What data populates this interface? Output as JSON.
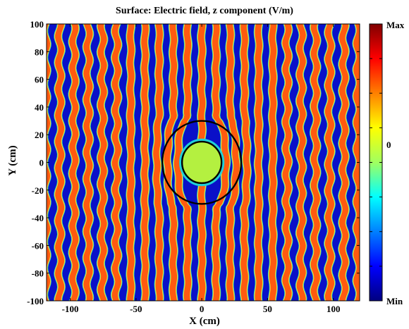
{
  "chart_data": {
    "type": "heatmap",
    "title": "Surface: Electric field, z component (V/m)",
    "xlabel": "X (cm)",
    "ylabel": "Y (cm)",
    "xlim": [
      -118,
      120
    ],
    "ylim": [
      -100,
      100
    ],
    "x_ticks": [
      -100,
      -50,
      0,
      50,
      100
    ],
    "y_ticks": [
      100,
      80,
      60,
      40,
      20,
      0,
      -20,
      -40,
      -60,
      -80,
      -100
    ],
    "colorbar": {
      "labels": [
        "Max",
        "0",
        "Min"
      ],
      "colors": [
        "#800000",
        "#ff0000",
        "#ff8000",
        "#ffff00",
        "#a0ff60",
        "#00ffff",
        "#0080ff",
        "#0000ff",
        "#000080"
      ]
    },
    "stripe_period_cm": 10.8,
    "band_colors": {
      "positive": "#ff5a10",
      "negative": "#0a10c8",
      "transition_warm": "#ffd040",
      "transition_cool": "#20d0d8",
      "zero": "#b4f040"
    },
    "inner_circle": {
      "center": [
        0,
        0
      ],
      "radius_cm": 15
    },
    "outer_circle": {
      "center": [
        0,
        0
      ],
      "radius_cm": 30
    }
  }
}
